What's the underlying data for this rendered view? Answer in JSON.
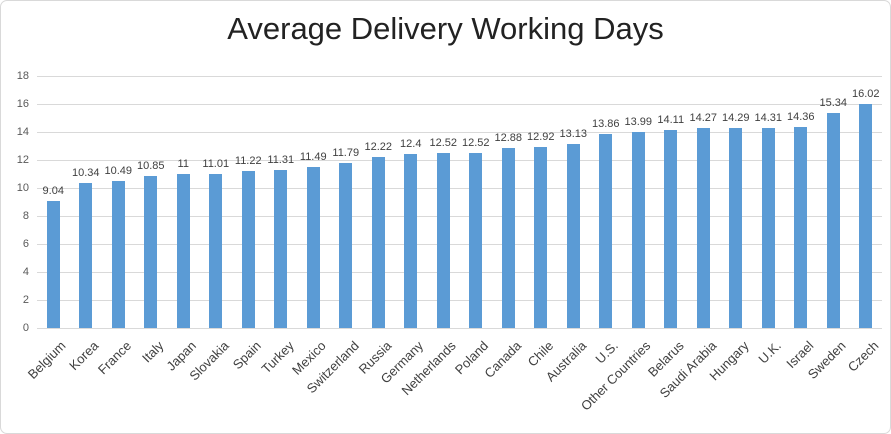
{
  "chart_data": {
    "type": "bar",
    "title": "Average Delivery Working Days",
    "categories": [
      "Belgium",
      "Korea",
      "France",
      "Italy",
      "Japan",
      "Slovakia",
      "Spain",
      "Turkey",
      "Mexico",
      "Switzerland",
      "Russia",
      "Germany",
      "Netherlands",
      "Poland",
      "Canada",
      "Chile",
      "Australia",
      "U.S.",
      "Other Countries",
      "Belarus",
      "Saudi Arabia",
      "Hungary",
      "U.K.",
      "Israel",
      "Sweden",
      "Czech"
    ],
    "values": [
      9.04,
      10.34,
      10.49,
      10.85,
      11,
      11.01,
      11.22,
      11.31,
      11.49,
      11.79,
      12.22,
      12.4,
      12.52,
      12.52,
      12.88,
      12.92,
      13.13,
      13.86,
      13.99,
      14.11,
      14.27,
      14.29,
      14.31,
      14.36,
      15.34,
      16.02
    ],
    "xlabel": "",
    "ylabel": "",
    "ylim": [
      0,
      18
    ],
    "yticks": [
      0,
      2,
      4,
      6,
      8,
      10,
      12,
      14,
      16,
      18
    ],
    "grid": true,
    "legend_position": "none",
    "data_labels_visible": true
  },
  "colors": {
    "bar_fill": "#5b9bd5",
    "gridline": "#d9d9d9",
    "axis_tick_text": "#595959",
    "data_label_text": "#404040",
    "category_label_text": "#404040",
    "title_text": "#222222",
    "frame_border": "#d9d9d9",
    "background": "#ffffff"
  }
}
